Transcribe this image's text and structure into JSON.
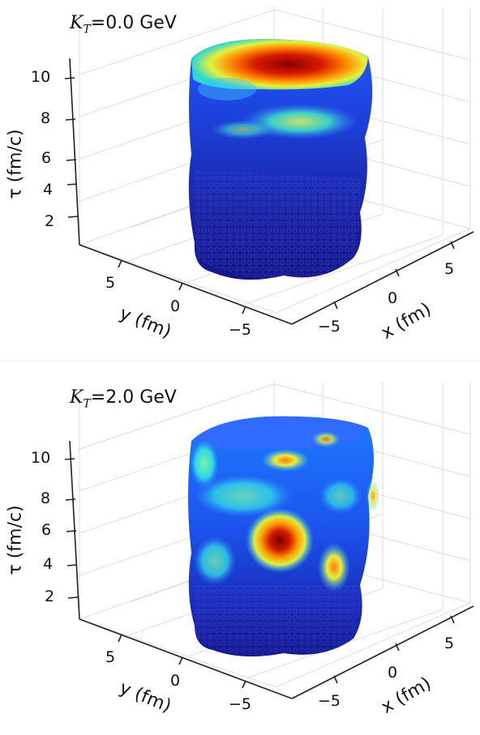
{
  "panels": [
    {
      "title_var": "K",
      "title_sub": "T",
      "title_value": "=0.0 GeV",
      "z_ticks": [
        "10",
        "8",
        "6",
        "4",
        "2"
      ],
      "z_label": "τ (fm/c)",
      "y_ticks": [
        "5",
        "0",
        "−5"
      ],
      "y_label": "y (fm)",
      "x_ticks": [
        "−5",
        "0",
        "5"
      ],
      "x_label": "x (fm)"
    },
    {
      "title_var": "K",
      "title_sub": "T",
      "title_value": "=2.0 GeV",
      "z_ticks": [
        "10",
        "8",
        "6",
        "4",
        "2"
      ],
      "z_label": "τ (fm/c)",
      "y_ticks": [
        "5",
        "0",
        "−5"
      ],
      "y_label": "y (fm)",
      "x_ticks": [
        "−5",
        "0",
        "5"
      ],
      "x_label": "x (fm)"
    }
  ],
  "colors": {
    "colormap": "jet",
    "low": "#1a1aa0",
    "high": "#b20000",
    "grid": "#dddddd"
  }
}
